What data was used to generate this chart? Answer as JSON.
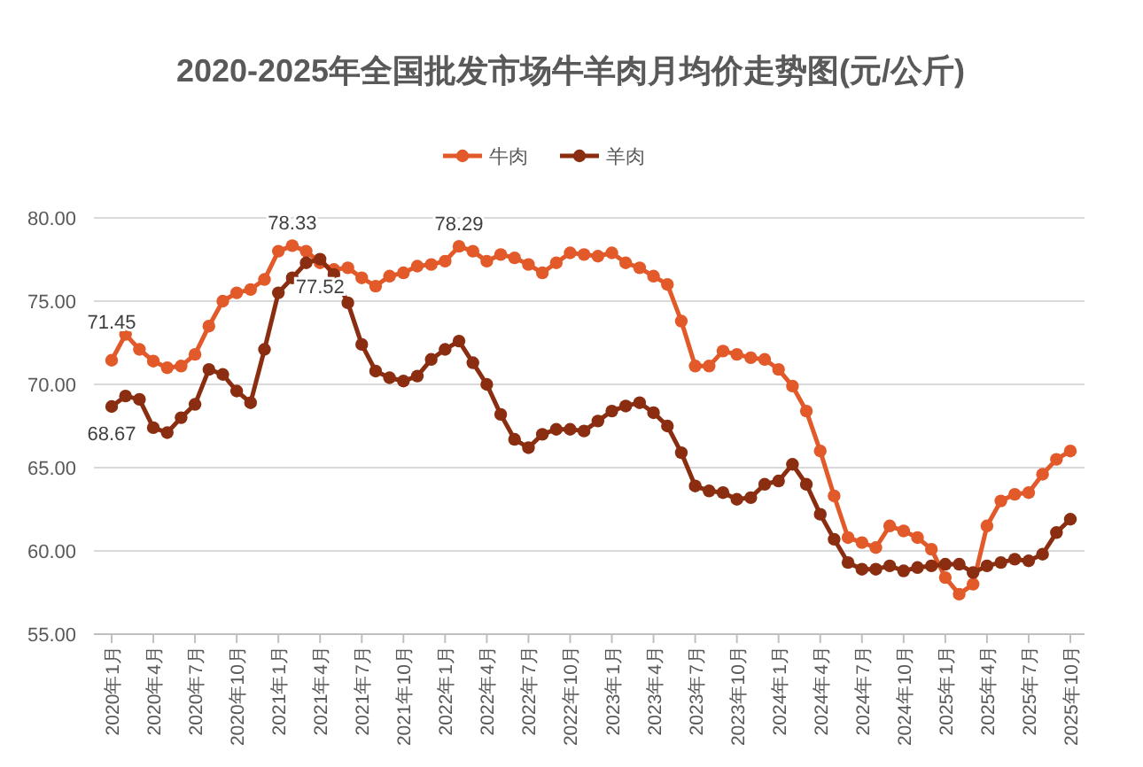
{
  "chart_data": {
    "type": "line",
    "title": "2020-2025年全国批发市场牛羊肉月均价走势图(元/公斤)",
    "categories": [
      "2020年1月",
      null,
      null,
      "2020年4月",
      null,
      null,
      "2020年7月",
      null,
      null,
      "2020年10月",
      null,
      null,
      "2021年1月",
      null,
      null,
      "2021年4月",
      null,
      null,
      "2021年7月",
      null,
      null,
      "2021年10月",
      null,
      null,
      "2022年1月",
      null,
      null,
      "2022年4月",
      null,
      null,
      "2022年7月",
      null,
      null,
      "2022年10月",
      null,
      null,
      "2023年1月",
      null,
      null,
      "2023年4月",
      null,
      null,
      "2023年7月",
      null,
      null,
      "2023年10月",
      null,
      null,
      "2024年1月",
      null,
      null,
      "2024年4月",
      null,
      null,
      "2024年7月",
      null,
      null,
      "2024年10月",
      null,
      null,
      "2025年1月",
      null,
      null,
      "2025年4月",
      null,
      null,
      "2025年7月",
      null,
      null,
      "2025年10月"
    ],
    "series": [
      {
        "name": "牛肉",
        "color": "#e2592a",
        "values": [
          71.45,
          73.0,
          72.1,
          71.4,
          71.0,
          71.1,
          71.8,
          73.5,
          75.0,
          75.5,
          75.7,
          76.3,
          78.0,
          78.33,
          78.0,
          77.3,
          76.9,
          77.0,
          76.4,
          75.9,
          76.5,
          76.7,
          77.1,
          77.2,
          77.4,
          78.29,
          78.0,
          77.4,
          77.8,
          77.6,
          77.2,
          76.7,
          77.3,
          77.9,
          77.8,
          77.7,
          77.9,
          77.3,
          77.0,
          76.5,
          76.0,
          73.8,
          71.1,
          71.1,
          72.0,
          71.8,
          71.6,
          71.5,
          70.9,
          69.9,
          68.4,
          66.0,
          63.3,
          60.8,
          60.5,
          60.2,
          61.5,
          61.2,
          60.8,
          60.1,
          58.4,
          57.4,
          58.0,
          61.5,
          63.0,
          63.4,
          63.5,
          64.6,
          65.5,
          66.0
        ],
        "value_labels": [
          "71.45",
          null,
          null,
          null,
          null,
          null,
          null,
          null,
          null,
          null,
          null,
          null,
          null,
          "78.33",
          null,
          null,
          null,
          null,
          null,
          null,
          null,
          null,
          null,
          null,
          null,
          "78.29",
          null,
          null,
          null,
          null,
          null,
          null,
          null,
          null,
          null,
          null,
          null,
          null,
          null,
          null,
          null,
          null,
          null,
          null,
          null,
          null,
          null,
          null,
          null,
          null,
          null,
          null,
          null,
          null,
          null,
          null,
          null,
          null,
          null,
          null,
          null,
          null,
          null,
          null,
          null,
          null,
          null,
          null,
          null,
          null
        ]
      },
      {
        "name": "羊肉",
        "color": "#8a2d10",
        "values": [
          68.67,
          69.3,
          69.1,
          67.4,
          67.1,
          68.0,
          68.8,
          70.9,
          70.6,
          69.6,
          68.9,
          72.1,
          75.5,
          76.4,
          77.3,
          77.52,
          76.6,
          74.9,
          72.4,
          70.8,
          70.4,
          70.2,
          70.5,
          71.5,
          72.1,
          72.6,
          71.3,
          70.0,
          68.2,
          66.7,
          66.2,
          67.0,
          67.3,
          67.3,
          67.2,
          67.8,
          68.4,
          68.7,
          68.9,
          68.3,
          67.5,
          65.9,
          63.9,
          63.6,
          63.5,
          63.1,
          63.2,
          64.0,
          64.2,
          65.2,
          64.0,
          62.2,
          60.7,
          59.3,
          58.9,
          58.9,
          59.1,
          58.8,
          59.0,
          59.1,
          59.2,
          59.2,
          58.7,
          59.1,
          59.3,
          59.5,
          59.4,
          59.8,
          61.1,
          61.9
        ],
        "value_labels": [
          "68.67",
          null,
          null,
          null,
          null,
          null,
          null,
          null,
          null,
          null,
          null,
          null,
          null,
          null,
          null,
          "77.52",
          null,
          null,
          null,
          null,
          null,
          null,
          null,
          null,
          null,
          null,
          null,
          null,
          null,
          null,
          null,
          null,
          null,
          null,
          null,
          null,
          null,
          null,
          null,
          null,
          null,
          null,
          null,
          null,
          null,
          null,
          null,
          null,
          null,
          null,
          null,
          null,
          null,
          null,
          null,
          null,
          null,
          null,
          null,
          null,
          null,
          null,
          null,
          null,
          null,
          null,
          null,
          null,
          null,
          null
        ]
      }
    ],
    "ylim": [
      55,
      80
    ],
    "yticks": [
      {
        "value": 55,
        "label": "55.00"
      },
      {
        "value": 60,
        "label": "60.00"
      },
      {
        "value": 65,
        "label": "65.00"
      },
      {
        "value": 70,
        "label": "70.00"
      },
      {
        "value": 75,
        "label": "75.00"
      },
      {
        "value": 80,
        "label": "80.00"
      }
    ],
    "grid": "y",
    "legend": "top",
    "marker": "circle",
    "line_style": "solid"
  }
}
